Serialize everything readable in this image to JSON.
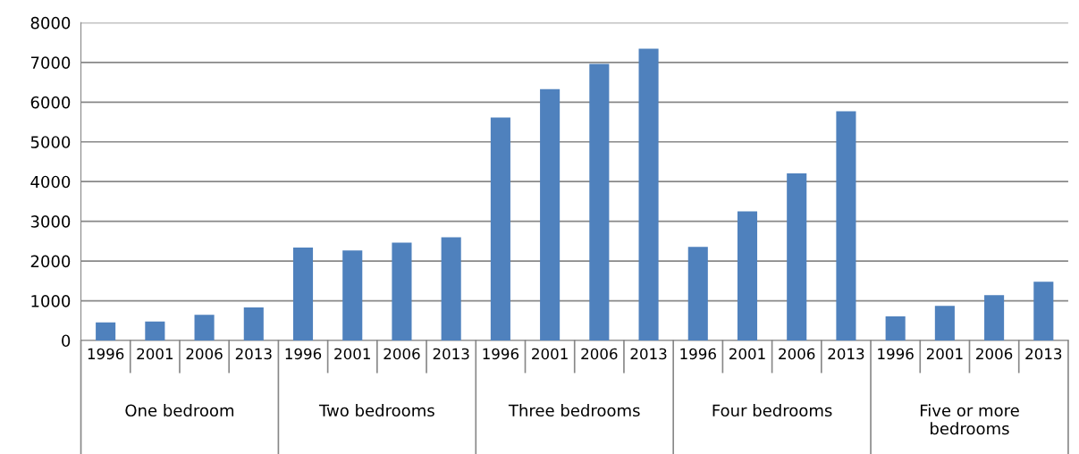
{
  "chart_data": {
    "type": "bar",
    "categories": [
      "1996",
      "2001",
      "2006",
      "2013",
      "1996",
      "2001",
      "2006",
      "2013",
      "1996",
      "2001",
      "2006",
      "2013",
      "1996",
      "2001",
      "2006",
      "2013",
      "1996",
      "2001",
      "2006",
      "2013"
    ],
    "values": [
      457,
      480,
      645,
      832,
      2339,
      2264,
      2466,
      2601,
      5615,
      6327,
      6964,
      7346,
      2354,
      3253,
      4205,
      5772,
      607,
      870,
      1139,
      1477
    ],
    "color": "#4f81bd",
    "ylim": [
      0,
      8000
    ],
    "yticks": [
      0,
      1000,
      2000,
      3000,
      4000,
      5000,
      6000,
      7000,
      8000
    ],
    "grid": "y",
    "annotations": [
      "One bedroom",
      "Two bedrooms",
      "Three bedrooms",
      "Four bedrooms",
      "Five or more\nbedrooms"
    ]
  }
}
